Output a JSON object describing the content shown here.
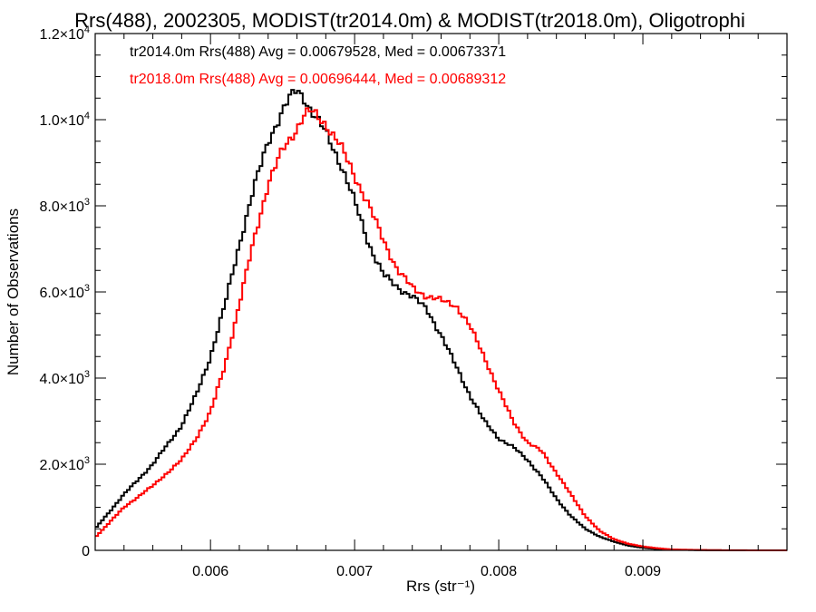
{
  "chart_data": {
    "type": "line",
    "title": "Rrs(488), 2002305, MODIST(tr2014.0m) & MODIST(tr2018.0m), Oligotrophi",
    "xlabel": "Rrs (str⁻¹)",
    "ylabel": "Number of Observations",
    "xlim": [
      0.0052,
      0.01
    ],
    "ylim": [
      0,
      12000
    ],
    "x_ticks": [
      0.006,
      0.007,
      0.008,
      0.009
    ],
    "x_tick_labels": [
      "0.006",
      "0.007",
      "0.008",
      "0.009"
    ],
    "y_ticks": [
      0,
      2000,
      4000,
      6000,
      8000,
      10000,
      12000
    ],
    "y_tick_labels": [
      {
        "base": "0",
        "exp": ""
      },
      {
        "base": "2.0×10",
        "exp": "3"
      },
      {
        "base": "4.0×10",
        "exp": "3"
      },
      {
        "base": "6.0×10",
        "exp": "3"
      },
      {
        "base": "8.0×10",
        "exp": "3"
      },
      {
        "base": "1.0×10",
        "exp": "4"
      },
      {
        "base": "1.2×10",
        "exp": "4"
      }
    ],
    "grid": false,
    "legend_position": "top-left",
    "annotations": [
      {
        "text": "tr2014.0m Rrs(488) Avg = 0.00679528, Med = 0.00673371",
        "color": "#000000"
      },
      {
        "text": "tr2018.0m Rrs(488) Avg = 0.00696444, Med = 0.00689312",
        "color": "#ff0000"
      }
    ],
    "series": [
      {
        "color": "#000000",
        "x": [
          0.0052,
          0.0054,
          0.0056,
          0.0058,
          0.0059,
          0.006,
          0.0061,
          0.0062,
          0.0063,
          0.0064,
          0.0065,
          0.00655,
          0.0066,
          0.00665,
          0.0067,
          0.0068,
          0.0069,
          0.007,
          0.0071,
          0.0072,
          0.0073,
          0.0074,
          0.0075,
          0.0076,
          0.0077,
          0.0078,
          0.0079,
          0.008,
          0.0081,
          0.0082,
          0.0083,
          0.0084,
          0.0085,
          0.0086,
          0.0087,
          0.0088,
          0.0089,
          0.009,
          0.0091,
          0.0092,
          0.0094,
          0.0096,
          0.01
        ],
        "y": [
          500,
          1300,
          2000,
          2900,
          3600,
          4500,
          5700,
          7100,
          8400,
          9500,
          10200,
          10500,
          10700,
          10500,
          10200,
          9700,
          9000,
          8100,
          7100,
          6400,
          6100,
          5900,
          5600,
          5000,
          4300,
          3600,
          3000,
          2600,
          2400,
          2100,
          1700,
          1200,
          800,
          500,
          320,
          200,
          110,
          60,
          30,
          15,
          5,
          0,
          0
        ]
      },
      {
        "color": "#ff0000",
        "x": [
          0.0052,
          0.0054,
          0.0056,
          0.0058,
          0.0059,
          0.006,
          0.0061,
          0.0062,
          0.0063,
          0.0064,
          0.0065,
          0.0066,
          0.00665,
          0.0067,
          0.0068,
          0.0069,
          0.007,
          0.0071,
          0.0072,
          0.0073,
          0.0074,
          0.0075,
          0.0076,
          0.0077,
          0.0078,
          0.0079,
          0.008,
          0.0081,
          0.0082,
          0.0083,
          0.0084,
          0.0085,
          0.0086,
          0.0087,
          0.0088,
          0.0089,
          0.009,
          0.0091,
          0.0092,
          0.0094,
          0.0096,
          0.01
        ],
        "y": [
          300,
          1000,
          1500,
          2100,
          2600,
          3200,
          4300,
          5700,
          7200,
          8500,
          9300,
          9800,
          10100,
          10200,
          9900,
          9400,
          8700,
          8000,
          7200,
          6500,
          6100,
          5900,
          5800,
          5700,
          5200,
          4500,
          3700,
          3000,
          2500,
          2300,
          1800,
          1300,
          800,
          450,
          260,
          150,
          90,
          50,
          20,
          8,
          2,
          0
        ]
      }
    ]
  }
}
